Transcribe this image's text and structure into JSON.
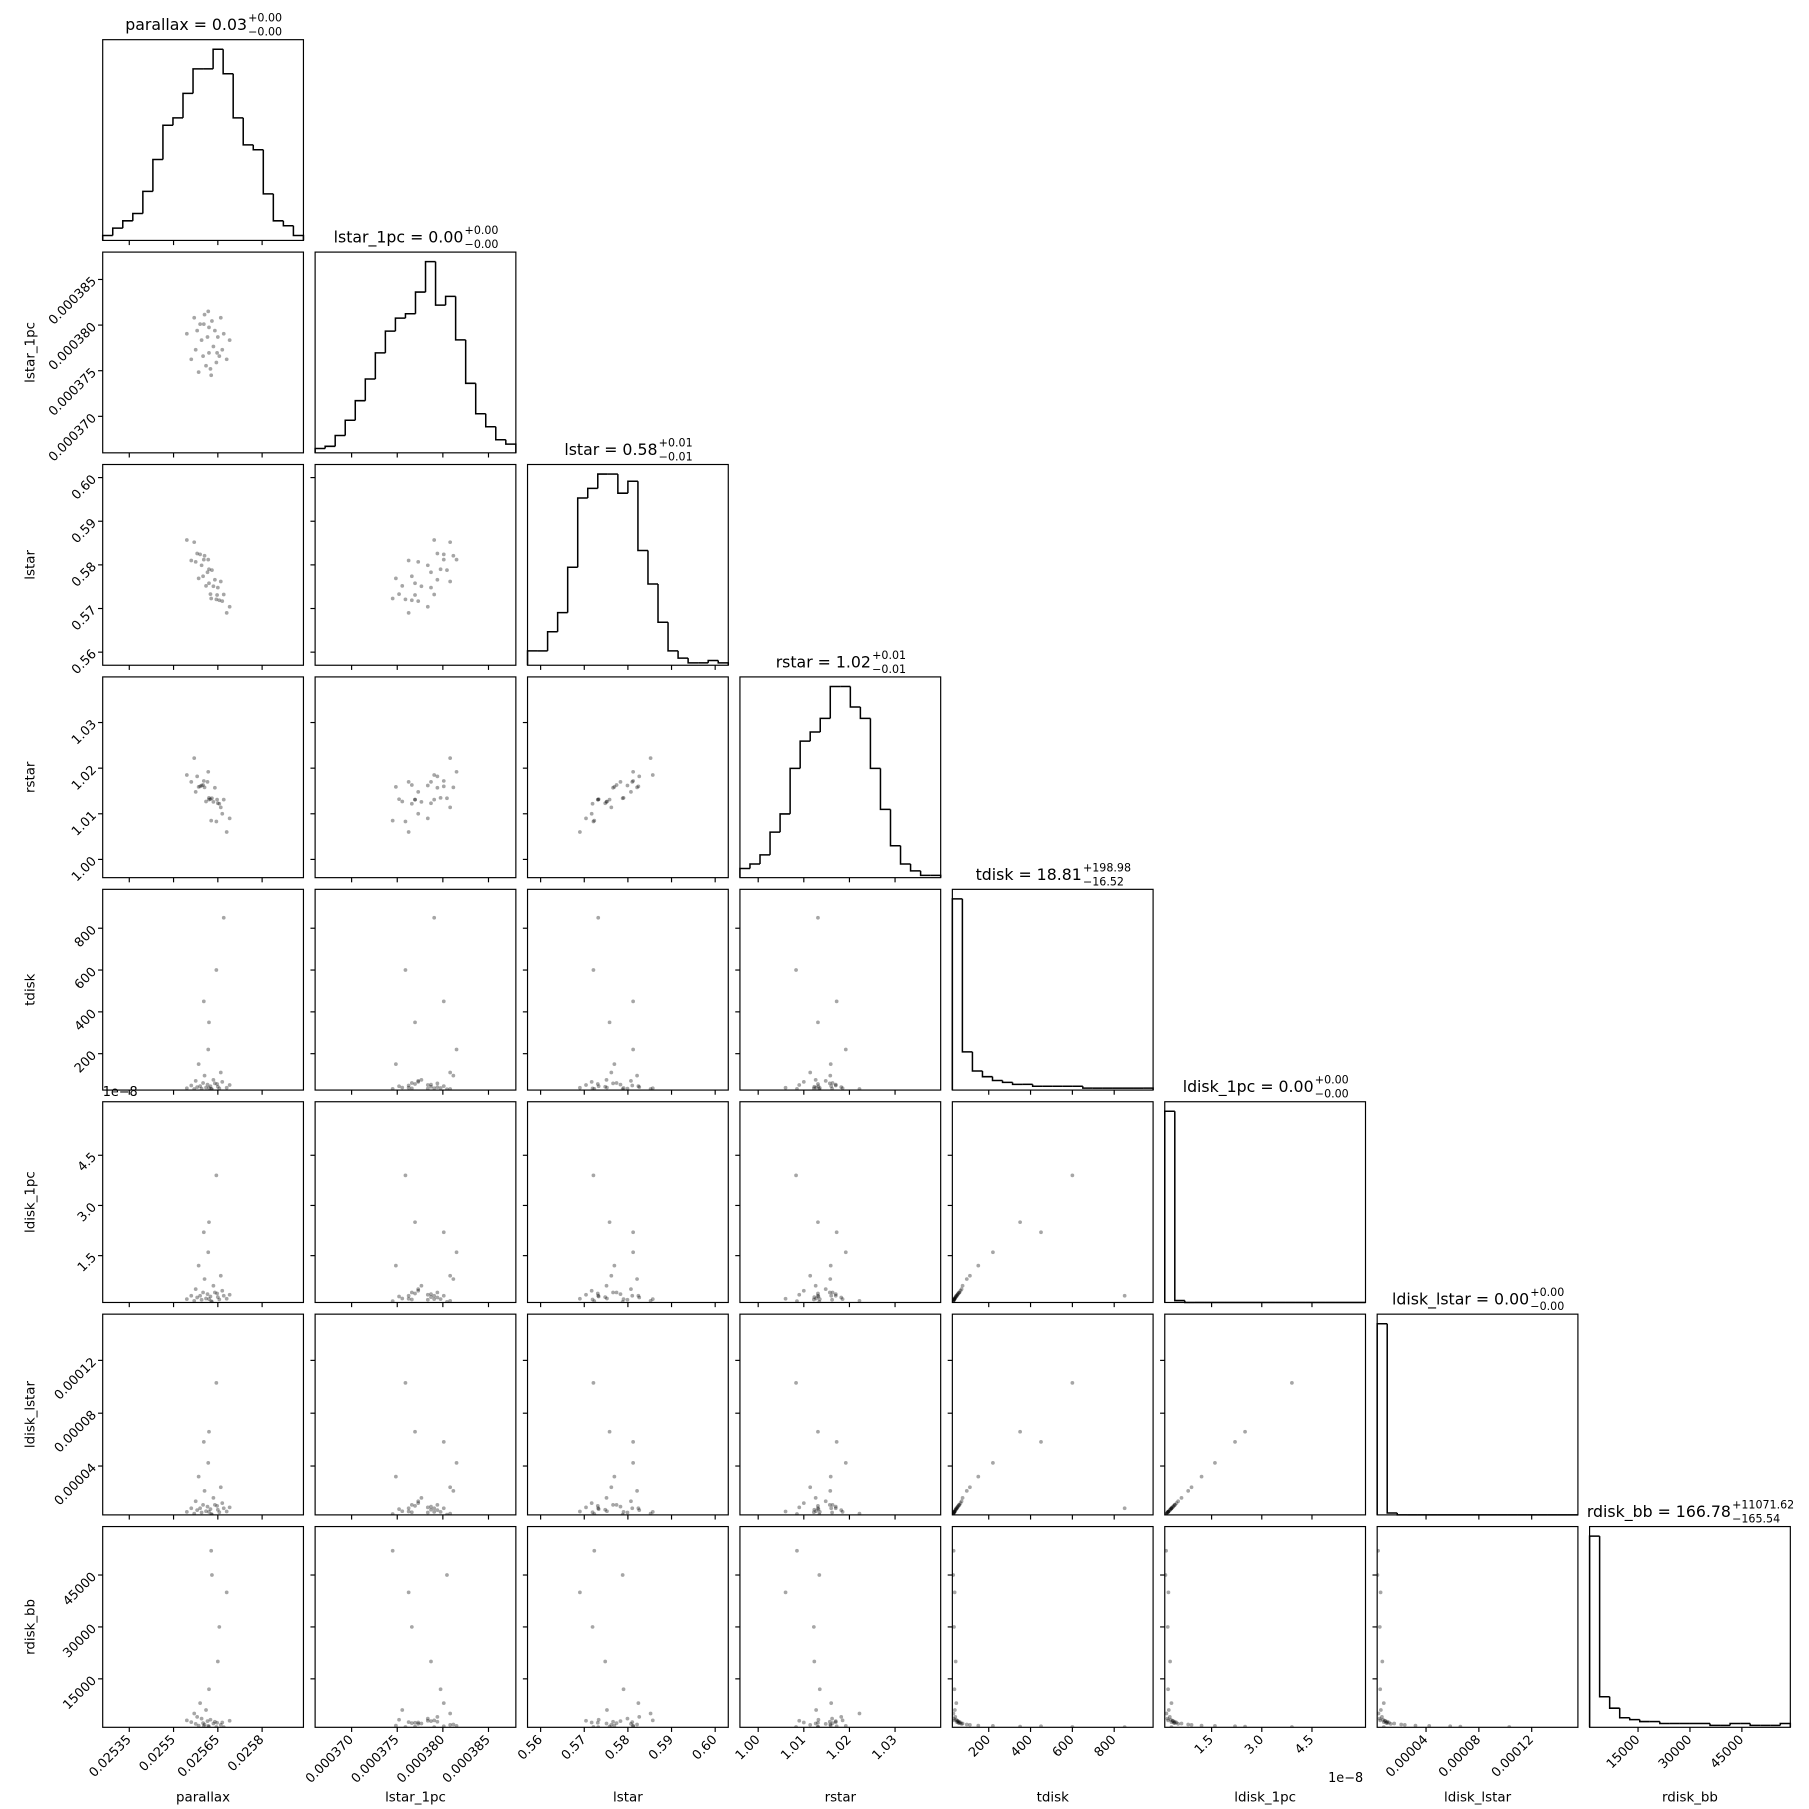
{
  "chart_data": {
    "type": "corner",
    "parameters": [
      {
        "name": "parallax",
        "title": {
          "text": "parallax = 0.03",
          "plus": "+0.00",
          "minus": "−0.00"
        },
        "lim": [
          0.02526,
          0.02594
        ],
        "ticks": [
          0.02535,
          0.0255,
          0.02565,
          0.0258
        ],
        "bins": [
          0.02526,
          0.025294,
          0.025328,
          0.025362,
          0.025396,
          0.02543,
          0.025464,
          0.025498,
          0.025532,
          0.025566,
          0.0256,
          0.025634,
          0.025668,
          0.025702,
          0.025736,
          0.02577,
          0.025804,
          0.025838,
          0.025872,
          0.025906,
          0.02594
        ],
        "counts": [
          2,
          5,
          8,
          11,
          20,
          33,
          47,
          50,
          60,
          70,
          70,
          78,
          68,
          50,
          39,
          37,
          19,
          8,
          6,
          2
        ],
        "samples": [
          0.025545,
          0.02556,
          0.02557,
          0.025575,
          0.02558,
          0.025585,
          0.02559,
          0.025595,
          0.0256,
          0.025605,
          0.02561,
          0.025615,
          0.02562,
          0.02562,
          0.025625,
          0.02563,
          0.025635,
          0.02564,
          0.025645,
          0.02565,
          0.025655,
          0.02566,
          0.025665,
          0.02567,
          0.02568,
          0.02569,
          0.0256175,
          0.0256275,
          0.0256025,
          0.0256475
        ]
      },
      {
        "name": "lstar_1pc",
        "title": {
          "text": "lstar_1pc = 0.00",
          "plus": "+0.00",
          "minus": "−0.00"
        },
        "lim": [
          0.000366,
          0.000388
        ],
        "ticks": [
          {
            "value": 0.00037,
            "label": "0.000370"
          },
          0.000375,
          {
            "value": 0.00038,
            "label": "0.000380"
          },
          0.000385
        ],
        "bins": [
          0.000366,
          0.0003671,
          0.0003682,
          0.0003693,
          0.0003704,
          0.0003715,
          0.0003726,
          0.0003737,
          0.0003748,
          0.0003759,
          0.000377,
          0.0003781,
          0.0003792,
          0.0003803,
          0.0003814,
          0.0003825,
          0.0003836,
          0.0003847,
          0.0003858,
          0.0003869,
          0.000388
        ],
        "counts": [
          2,
          3,
          8,
          15,
          24,
          34,
          46,
          56,
          62,
          64,
          74,
          88,
          68,
          72,
          52,
          32,
          18,
          12,
          6,
          4
        ],
        "samples": [
          0.00037905,
          0.00037625,
          0.0003808,
          0.0003773,
          0.0003794,
          0.00037485,
          0.0003801,
          0.00037835,
          0.0003766,
          0.00038115,
          0.00037555,
          0.0003787,
          0.00037975,
          0.00037695,
          0.0003752,
          0.00038045,
          0.00037765,
          0.0003794,
          0.0003759,
          0.0003787,
          0.0003766,
          0.0003808,
          0.0003773,
          0.00037905,
          0.00037625,
          0.00037835,
          0.0003815,
          0.0003745,
          0.0003801,
          0.00037695
        ]
      },
      {
        "name": "lstar",
        "title": {
          "text": "lstar = 0.58",
          "plus": "+0.01",
          "minus": "−0.01"
        },
        "lim": [
          0.557,
          0.603
        ],
        "ticks": [
          0.56,
          0.57,
          0.58,
          0.59,
          {
            "value": 0.6,
            "label": "0.60"
          }
        ],
        "bins": [
          0.557,
          0.5593,
          0.5616,
          0.5639,
          0.5662,
          0.5685,
          0.5708,
          0.5731,
          0.5754,
          0.5777,
          0.58,
          0.5823,
          0.5846,
          0.5869,
          0.5892,
          0.5915,
          0.5938,
          0.5961,
          0.5984,
          0.6007,
          0.603
        ],
        "counts": [
          6,
          6,
          14,
          22,
          41,
          70,
          74,
          80,
          80,
          72,
          77,
          48,
          34,
          18,
          6,
          3,
          1,
          1,
          2,
          1
        ],
        "samples": [
          0.5857,
          0.581,
          0.5852,
          0.5807,
          0.5826,
          0.5769,
          0.5824,
          0.5799,
          0.5774,
          0.5821,
          0.5752,
          0.5783,
          0.579,
          0.5758,
          0.5733,
          0.5788,
          0.5751,
          0.5766,
          0.5721,
          0.5748,
          0.5719,
          0.5762,
          0.5717,
          0.5732,
          0.569,
          0.5704,
          0.5812,
          0.5723,
          0.5812,
          0.5731
        ]
      },
      {
        "name": "rstar",
        "title": {
          "text": "rstar = 1.02",
          "plus": "+0.01",
          "minus": "−0.01"
        },
        "lim": [
          0.996,
          1.04
        ],
        "ticks": [
          {
            "value": 1,
            "label": "1.00"
          },
          1.01,
          1.02,
          1.03
        ],
        "bins": [
          0.996,
          0.9982,
          1.0004,
          1.0026,
          1.0048,
          1.007,
          1.0092,
          1.0114,
          1.0136,
          1.0158,
          1.018,
          1.0202,
          1.0224,
          1.0246,
          1.0268,
          1.029,
          1.0312,
          1.0334,
          1.0356,
          1.0378,
          1.04
        ],
        "counts": [
          4,
          6,
          10,
          20,
          28,
          48,
          60,
          64,
          70,
          84,
          84,
          75,
          70,
          48,
          30,
          14,
          6,
          3,
          1,
          1
        ],
        "samples": [
          1.0185,
          1.017,
          1.0222,
          1.0148,
          1.0182,
          1.0159,
          1.016,
          1.0162,
          1.0163,
          1.0158,
          1.0127,
          1.017,
          1.0135,
          1.0131,
          1.0132,
          1.0134,
          1.0126,
          1.0157,
          1.0083,
          1.0123,
          1.0122,
          1.0114,
          1.01,
          1.0131,
          1.006,
          1.009,
          1.0192,
          1.0085,
          1.0172,
          1.0131
        ]
      },
      {
        "name": "tdisk",
        "title": {
          "text": "tdisk = 18.81",
          "plus": "+198.98",
          "minus": "−16.52"
        },
        "lim": [
          26,
          986
        ],
        "ticks": [
          200,
          400,
          600,
          800
        ],
        "bins": [
          26,
          74,
          122,
          170,
          218,
          266,
          314,
          362,
          410,
          458,
          506,
          554,
          602,
          650,
          698,
          746,
          794,
          842,
          890,
          938,
          986
        ],
        "counts": [
          100,
          20,
          10,
          7,
          5,
          4,
          3,
          3,
          2,
          2,
          2,
          2,
          2,
          1,
          1,
          1,
          1,
          1,
          1,
          1
        ],
        "samples": [
          35,
          48,
          31,
          70,
          40,
          150,
          45,
          33,
          60,
          95,
          38,
          52,
          36,
          350,
          44,
          30,
          75,
          58,
          600,
          42,
          34,
          110,
          65,
          850,
          37,
          50,
          220,
          32,
          450,
          55
        ]
      },
      {
        "name": "ldisk_1pc",
        "title": {
          "text": "ldisk_1pc = 0.00",
          "plus": "+0.00",
          "minus": "−0.00"
        },
        "offset_label": "1e−8",
        "lim": [
          0.1,
          6.1
        ],
        "ticks": [
          1.5,
          {
            "value": 3,
            "label": "3.0"
          },
          4.5
        ],
        "bins": [
          0.1,
          0.4,
          0.7,
          1,
          1.3,
          1.6,
          1.9,
          2.2,
          2.5,
          2.8,
          3.1,
          3.4,
          3.7,
          4,
          4.3,
          4.6,
          4.9,
          5.2,
          5.5,
          5.8,
          6.1
        ],
        "counts": [
          100,
          1,
          0,
          0,
          0,
          0,
          0,
          0,
          0,
          0,
          0,
          0,
          0,
          0,
          0,
          0,
          0,
          0,
          0,
          0
        ],
        "samples": [
          0.2,
          0.3,
          0.15,
          0.5,
          0.25,
          1.2,
          0.3,
          0.18,
          0.4,
          0.8,
          0.22,
          0.35,
          0.2,
          2.5,
          0.28,
          0.12,
          0.6,
          0.4,
          3.9,
          0.26,
          0.19,
          0.9,
          0.45,
          0.3,
          0.21,
          0.33,
          1.6,
          0.14,
          2.2,
          0.37
        ]
      },
      {
        "name": "ldisk_lstar",
        "title": {
          "text": "ldisk_lstar = 0.00",
          "plus": "+0.00",
          "minus": "−0.00"
        },
        "lim": [
          3e-06,
          0.000155
        ],
        "ticks": [
          4e-05,
          8e-05,
          0.00012
        ],
        "bins": [
          3e-06,
          1.06e-05,
          1.82e-05,
          2.58e-05,
          3.34e-05,
          4.1e-05,
          4.86e-05,
          5.62e-05,
          6.38e-05,
          7.14e-05,
          7.9e-05,
          8.66e-05,
          9.42e-05,
          0.0001018,
          0.0001094,
          0.000117,
          0.0001246,
          0.0001322,
          0.0001398,
          0.0001474,
          0.000155
        ],
        "counts": [
          100,
          1,
          0,
          0,
          0,
          0,
          0,
          0,
          0,
          0,
          0,
          0,
          0,
          0,
          0,
          0,
          0,
          0,
          0,
          0
        ],
        "samples": [
          5.3e-06,
          8e-06,
          4e-06,
          1.33e-05,
          6.6e-06,
          3.2e-05,
          8e-06,
          4.8e-06,
          1.06e-05,
          2.12e-05,
          5.8e-06,
          9.3e-06,
          5.3e-06,
          6.6e-05,
          7.4e-06,
          3.2e-06,
          1.59e-05,
          1.06e-05,
          0.000103,
          6.9e-06,
          5e-06,
          2.39e-05,
          1.19e-05,
          8e-06,
          5.6e-06,
          8.7e-06,
          4.24e-05,
          3.7e-06,
          5.83e-05,
          9.8e-06
        ]
      },
      {
        "name": "rdisk_bb",
        "title": {
          "text": "rdisk_bb = 166.78",
          "plus": "+11071.62",
          "minus": "−165.54"
        },
        "lim": [
          1000,
          59000
        ],
        "ticks": [
          15000,
          30000,
          45000
        ],
        "bins": [
          1000,
          3900,
          6800,
          9700,
          12600,
          15500,
          18400,
          21300,
          24200,
          27100,
          30000,
          32900,
          35800,
          38700,
          41600,
          44500,
          47400,
          50300,
          53200,
          56100,
          59000
        ],
        "counts": [
          100,
          16,
          10,
          5,
          4,
          3,
          3,
          2,
          2,
          2,
          2,
          2,
          1,
          1,
          2,
          2,
          1,
          1,
          1,
          2
        ],
        "samples": [
          3000,
          2500,
          5000,
          2000,
          4000,
          1500,
          8000,
          3500,
          2200,
          1800,
          6000,
          2800,
          12000,
          1200,
          3200,
          45000,
          2100,
          2600,
          1100,
          20000,
          30000,
          1700,
          2400,
          1050,
          40000,
          2900,
          1400,
          52000,
          1300,
          2300
        ]
      }
    ]
  }
}
